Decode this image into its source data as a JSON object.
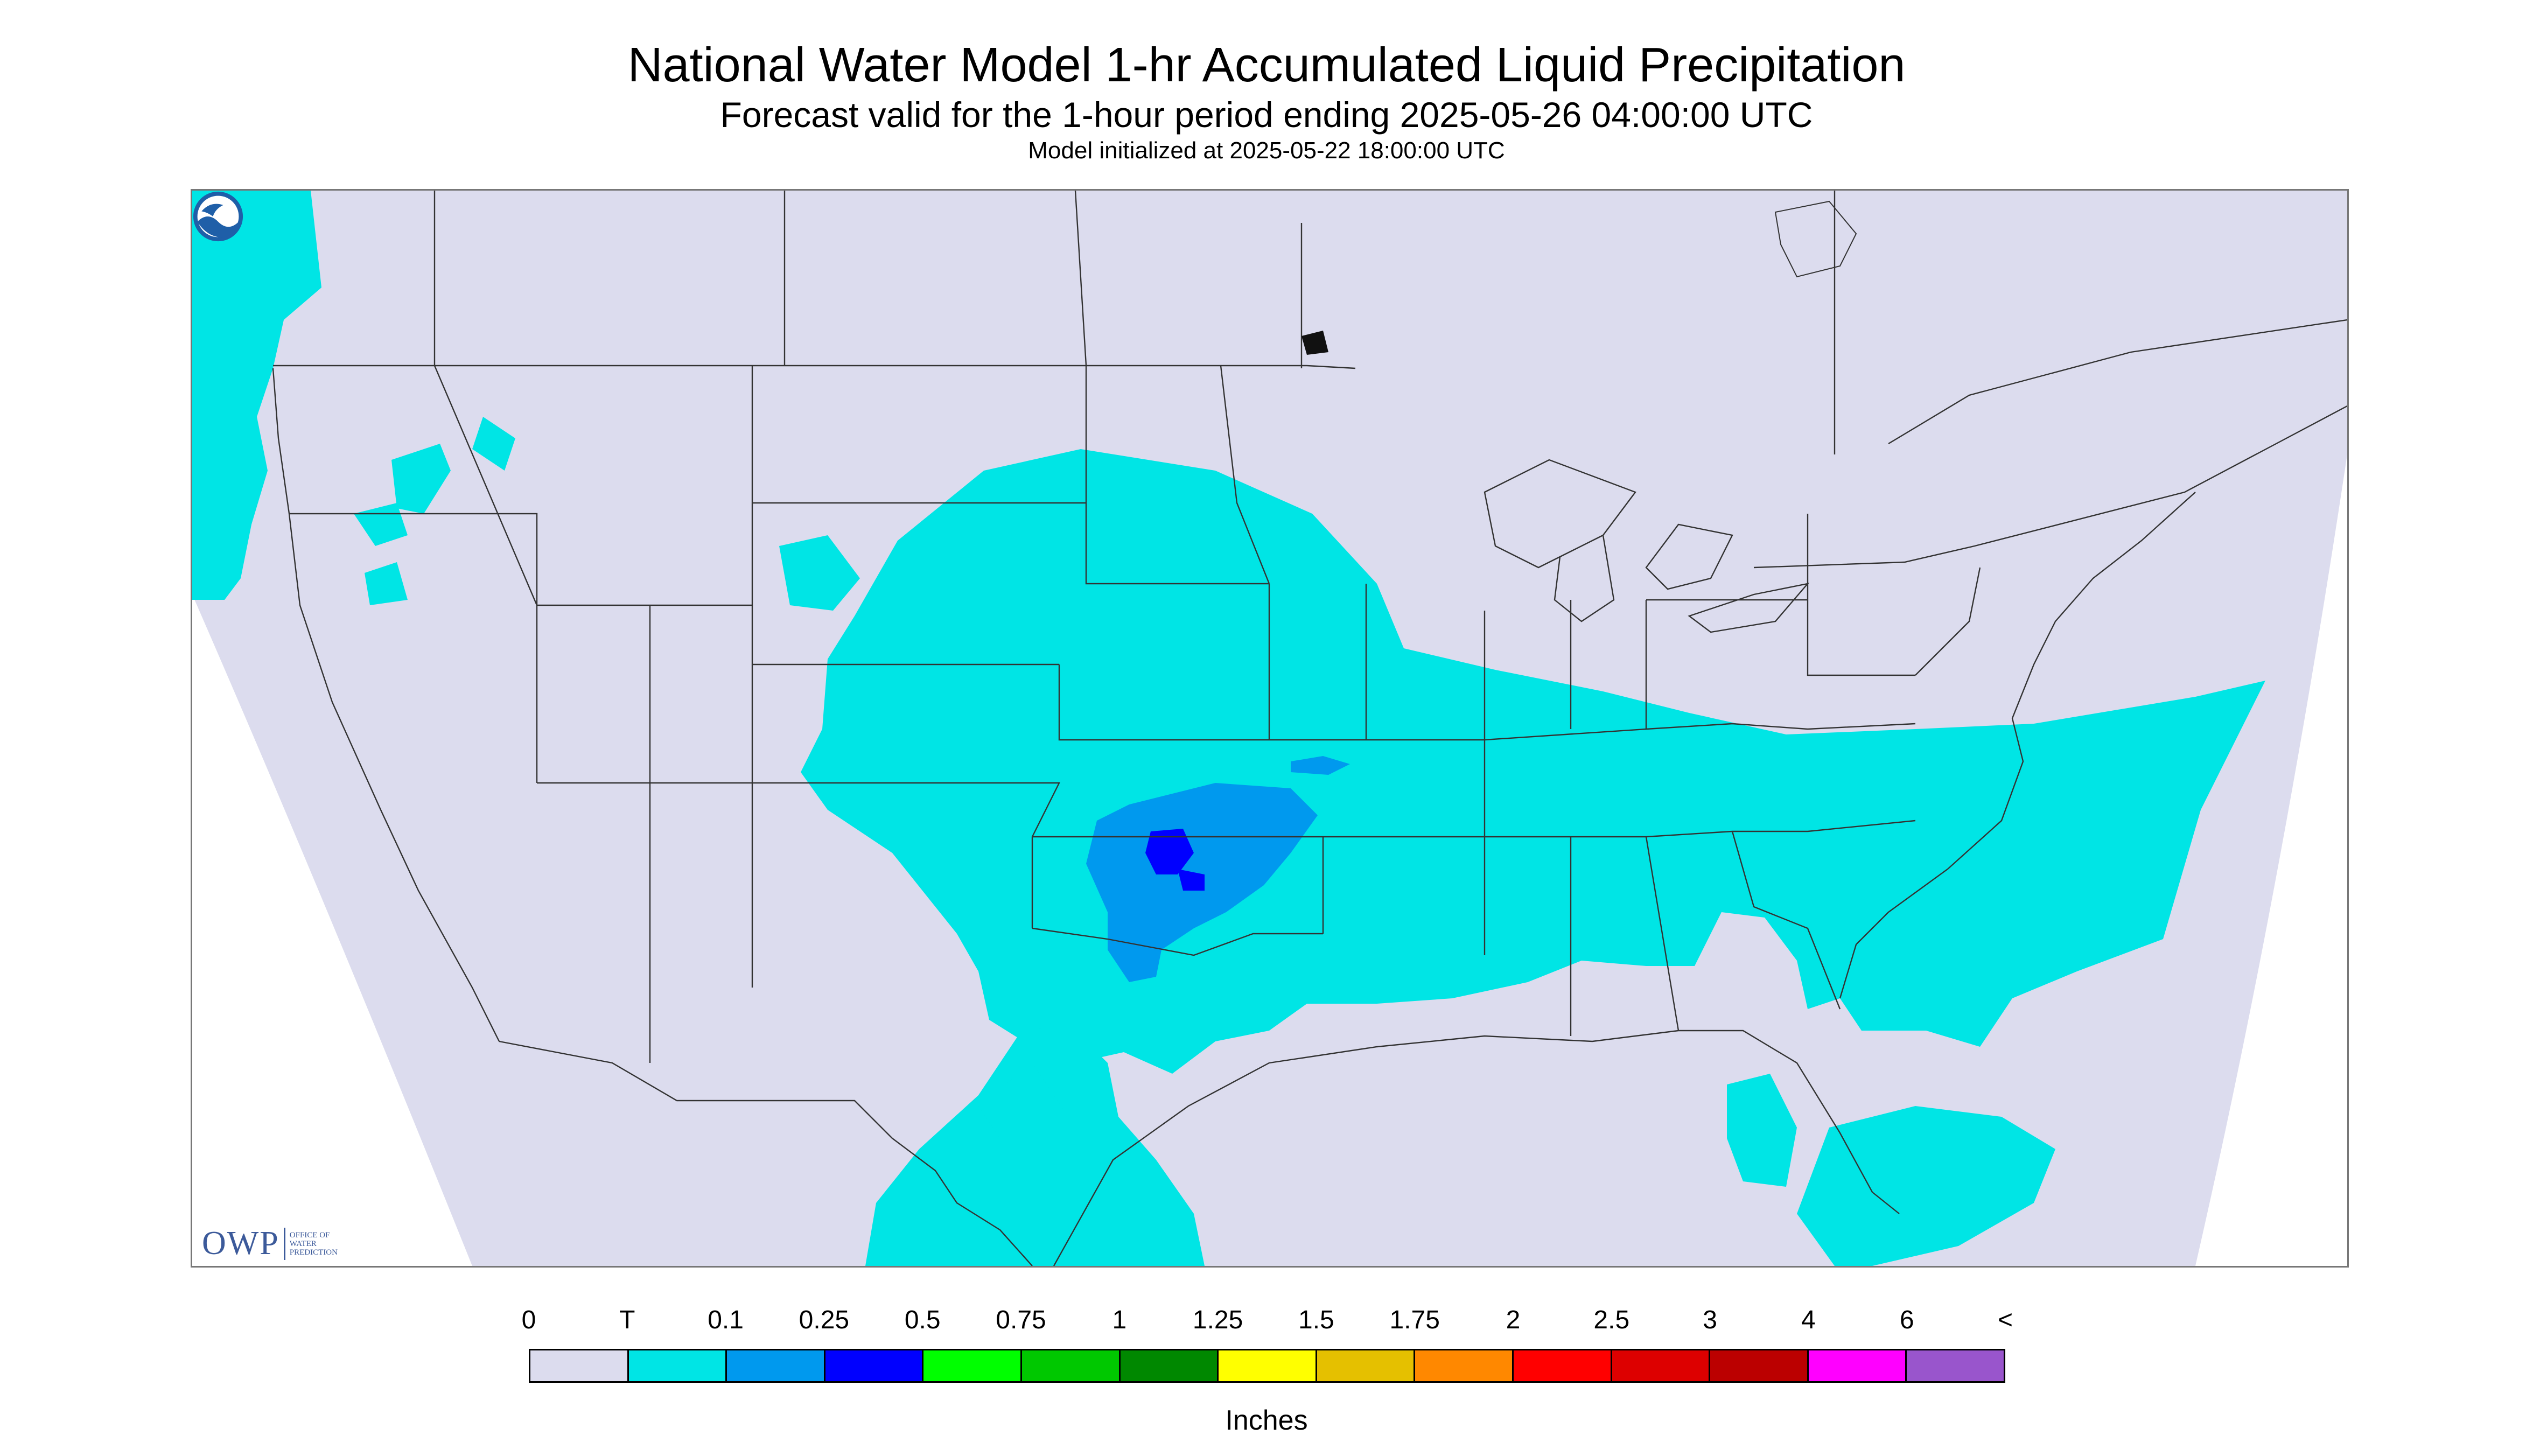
{
  "header": {
    "title": "National Water Model 1-hr Accumulated Liquid Precipitation",
    "subtitle": "Forecast valid for the 1-hour period ending 2025-05-26 04:00:00 UTC",
    "init": "Model initialized at 2025-05-22 18:00:00 UTC"
  },
  "map": {
    "background_color": "#dcdcee",
    "outside_color": "#ffffff",
    "line_color": "#333333",
    "icons": [
      "owp-logo",
      "noaa-logo"
    ]
  },
  "owp_logo": {
    "text": "OWP",
    "line1": "OFFICE OF",
    "line2": "WATER",
    "line3": "PREDICTION"
  },
  "legend": {
    "tick_labels": [
      "0",
      "T",
      "0.1",
      "0.25",
      "0.5",
      "0.75",
      "1",
      "1.25",
      "1.5",
      "1.75",
      "2",
      "2.5",
      "3",
      "4",
      "6",
      "<"
    ],
    "colors": [
      "#dcdcee",
      "#00e5e5",
      "#0099ee",
      "#0000ff",
      "#00ff00",
      "#00c800",
      "#008800",
      "#ffff00",
      "#e5c000",
      "#ff8800",
      "#ff0000",
      "#dd0000",
      "#bb0000",
      "#ff00ff",
      "#9955cc"
    ],
    "units": "Inches"
  }
}
